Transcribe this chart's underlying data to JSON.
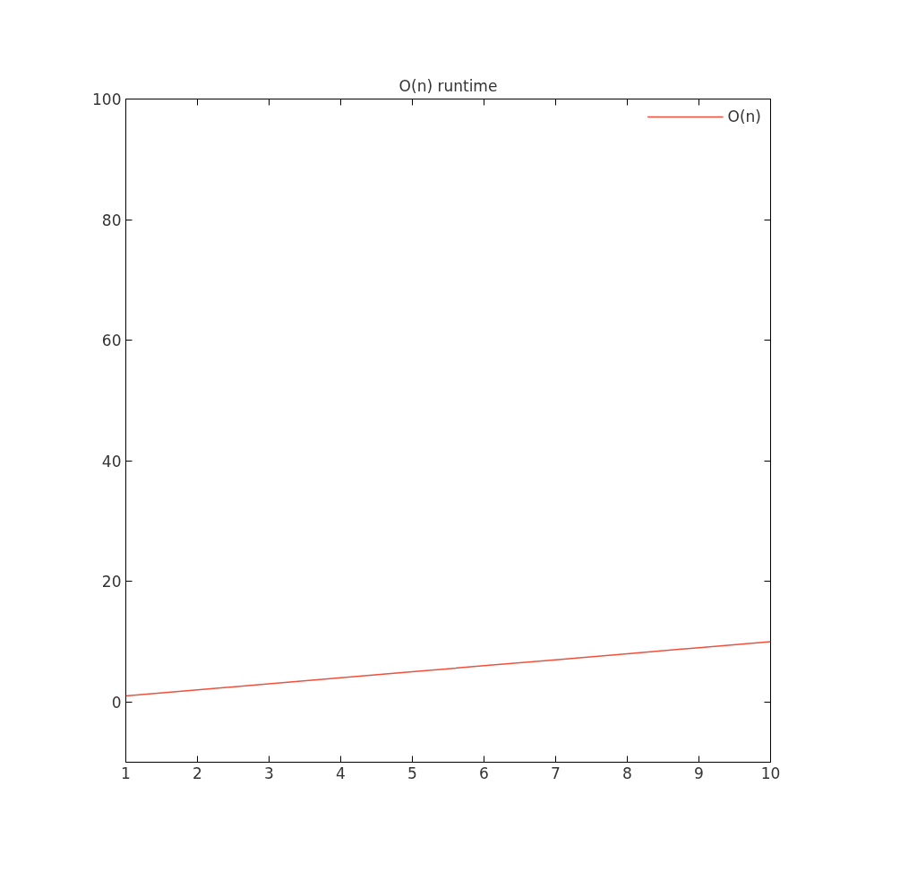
{
  "chart_data": {
    "type": "line",
    "title": "O(n) runtime",
    "x": [
      1,
      2,
      3,
      4,
      5,
      6,
      7,
      8,
      9,
      10
    ],
    "series": [
      {
        "name": "O(n)",
        "color": "#f0503c",
        "values": [
          1,
          2,
          3,
          4,
          5,
          6,
          7,
          8,
          9,
          10
        ]
      }
    ],
    "xlim": [
      1,
      10
    ],
    "xticks": [
      1,
      2,
      3,
      4,
      5,
      6,
      7,
      8,
      9,
      10
    ],
    "ylim": [
      -10,
      100
    ],
    "yticks": [
      0,
      20,
      40,
      60,
      80,
      100
    ],
    "grid": false,
    "legend": "top right",
    "marker": "none",
    "line_style": "solid"
  }
}
